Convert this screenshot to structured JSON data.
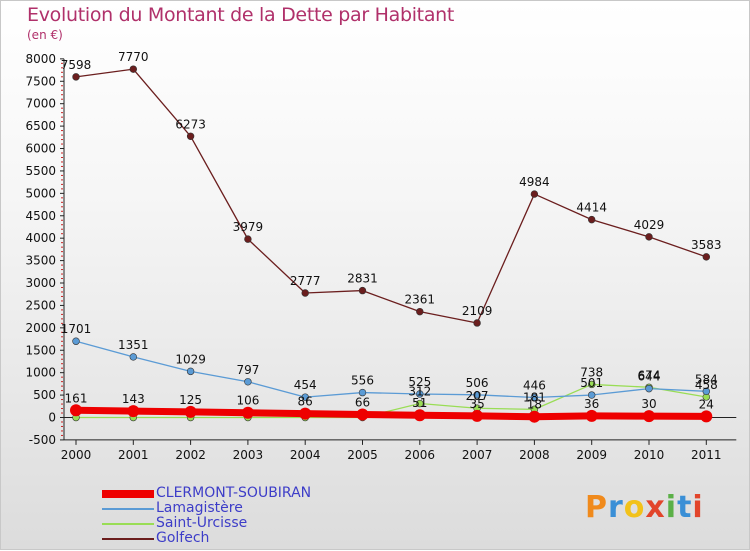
{
  "chart_data": {
    "type": "line",
    "title": "Evolution du Montant de la Dette par Habitant",
    "subtitle": "(en €)",
    "x": [
      2000,
      2001,
      2002,
      2003,
      2004,
      2005,
      2006,
      2007,
      2008,
      2009,
      2010,
      2011
    ],
    "ylim": [
      -500,
      8000
    ],
    "yticks": [
      -500,
      0,
      500,
      1000,
      1500,
      2000,
      2500,
      3000,
      3500,
      4000,
      4500,
      5000,
      5500,
      6000,
      6500,
      7000,
      7500,
      8000
    ],
    "grid": false,
    "legend_position": "bottom-left",
    "series": [
      {
        "name": "CLERMONT-SOUBIRAN",
        "color": "#ee0000",
        "values": [
          161,
          143,
          125,
          106,
          86,
          66,
          51,
          35,
          18,
          36,
          30,
          24
        ]
      },
      {
        "name": "Lamagistère",
        "color": "#5b9bd5",
        "values": [
          1701,
          1351,
          1029,
          797,
          454,
          556,
          525,
          506,
          446,
          501,
          644,
          584
        ]
      },
      {
        "name": "Saint-Urcisse",
        "color": "#99dd55",
        "values": [
          0,
          0,
          0,
          0,
          0,
          0,
          312,
          207,
          181,
          738,
          674,
          458
        ]
      },
      {
        "name": "Golfech",
        "color": "#6b1e1e",
        "values": [
          7598,
          7770,
          6273,
          3979,
          2777,
          2831,
          2361,
          2109,
          4984,
          4414,
          4029,
          3583
        ]
      }
    ],
    "data_labels": [
      {
        "series": 0,
        "labels": [
          "161",
          "143",
          "125",
          "106",
          "86",
          "66",
          "51",
          "35",
          "18",
          "36",
          "30",
          "24"
        ]
      },
      {
        "series": 1,
        "labels": [
          "1701",
          "1351",
          "1029",
          "797",
          "454",
          "556",
          "525",
          "506",
          "446",
          "501",
          "644",
          "584"
        ]
      },
      {
        "series": 2,
        "labels": [
          "",
          "",
          "",
          "",
          "",
          "",
          "312",
          "207",
          "181",
          "738",
          "674",
          "458"
        ]
      },
      {
        "series": 3,
        "labels": [
          "7598",
          "7770",
          "6273",
          "3979",
          "2777",
          "2831",
          "2361",
          "2109",
          "4984",
          "4414",
          "4029",
          "3583"
        ]
      }
    ]
  },
  "logo": {
    "text": "Proxiti",
    "colors": [
      "#f08a1c",
      "#3a8fd6",
      "#f2c21a",
      "#e2452b",
      "#5bb047",
      "#3a8fd6",
      "#e2452b"
    ]
  }
}
